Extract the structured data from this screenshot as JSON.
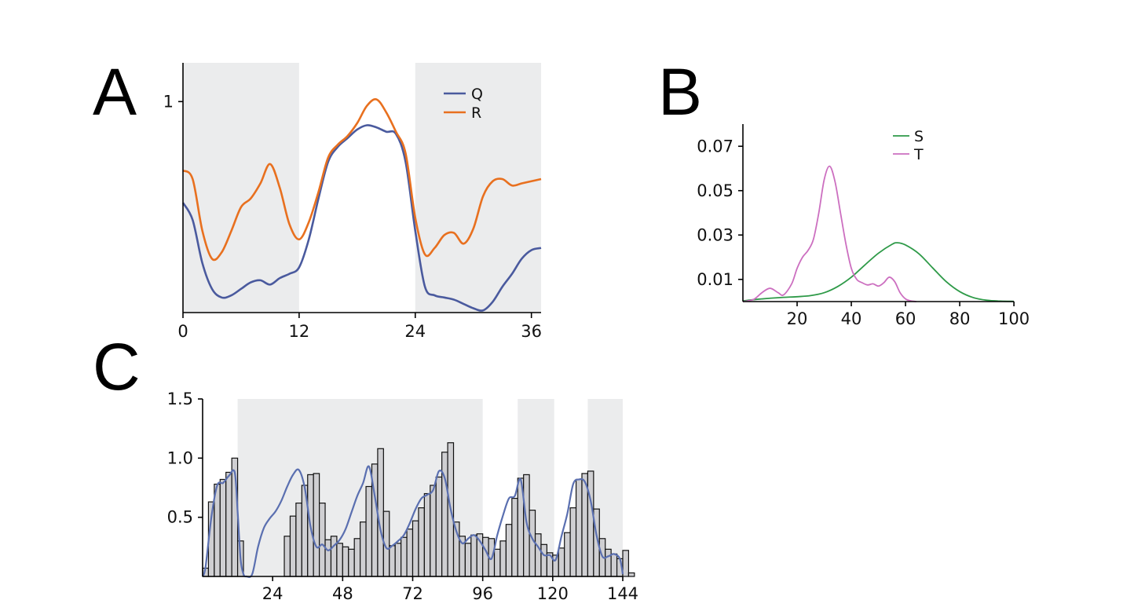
{
  "panels": {
    "a": {
      "letter": "A"
    },
    "b": {
      "letter": "B"
    },
    "c": {
      "letter": "C"
    }
  },
  "colors": {
    "Q": "#4a5a9e",
    "R": "#e8701f",
    "S": "#2e9a48",
    "T": "#cc6fc0",
    "C_line": "#5a6fb0",
    "C_bar": "#cfcfd2",
    "shade": "#ebeced"
  },
  "chart_data": [
    {
      "panel": "A",
      "type": "line",
      "xlim": [
        0,
        37
      ],
      "ylim": [
        0.02,
        1.18
      ],
      "x_ticks": [
        0,
        12,
        24,
        36
      ],
      "x_tick_labels": [
        "0",
        "12",
        "24",
        "36"
      ],
      "y_ticks": [
        1
      ],
      "y_tick_labels": [
        "1"
      ],
      "shaded_ranges": [
        [
          0,
          12
        ],
        [
          24,
          37
        ]
      ],
      "legend": {
        "position": "top-right"
      },
      "series": [
        {
          "name": "Q",
          "x": [
            0,
            1,
            2,
            3,
            4,
            5,
            6,
            7,
            8,
            9,
            10,
            11,
            12,
            13,
            14,
            15,
            16,
            17,
            18,
            19,
            20,
            21,
            22,
            23,
            24,
            25,
            26,
            27,
            28,
            29,
            30,
            31,
            32,
            33,
            34,
            35,
            36,
            37
          ],
          "y": [
            0.53,
            0.45,
            0.25,
            0.13,
            0.09,
            0.1,
            0.13,
            0.16,
            0.17,
            0.15,
            0.18,
            0.2,
            0.23,
            0.36,
            0.55,
            0.72,
            0.79,
            0.83,
            0.87,
            0.89,
            0.88,
            0.86,
            0.85,
            0.72,
            0.4,
            0.14,
            0.1,
            0.09,
            0.08,
            0.06,
            0.04,
            0.03,
            0.07,
            0.14,
            0.2,
            0.27,
            0.31,
            0.32
          ]
        },
        {
          "name": "R",
          "x": [
            0,
            1,
            2,
            3,
            4,
            5,
            6,
            7,
            8,
            9,
            10,
            11,
            12,
            13,
            14,
            15,
            16,
            17,
            18,
            19,
            20,
            21,
            22,
            23,
            24,
            25,
            26,
            27,
            28,
            29,
            30,
            31,
            32,
            33,
            34,
            35,
            36,
            37
          ],
          "y": [
            0.68,
            0.64,
            0.4,
            0.27,
            0.3,
            0.4,
            0.51,
            0.55,
            0.62,
            0.71,
            0.6,
            0.43,
            0.36,
            0.44,
            0.58,
            0.74,
            0.8,
            0.84,
            0.9,
            0.98,
            1.01,
            0.95,
            0.86,
            0.76,
            0.46,
            0.29,
            0.32,
            0.38,
            0.39,
            0.34,
            0.41,
            0.56,
            0.63,
            0.64,
            0.61,
            0.62,
            0.63,
            0.64
          ]
        }
      ]
    },
    {
      "panel": "B",
      "type": "line",
      "xlim": [
        0,
        102
      ],
      "ylim": [
        0,
        0.08
      ],
      "x_ticks": [
        20,
        40,
        60,
        80,
        100
      ],
      "x_tick_labels": [
        "20",
        "40",
        "60",
        "80",
        "100"
      ],
      "y_ticks": [
        0.01,
        0.03,
        0.05,
        0.07
      ],
      "y_tick_labels": [
        "0.01",
        "0.03",
        "0.05",
        "0.07"
      ],
      "legend": {
        "position": "top-center"
      },
      "series": [
        {
          "name": "S",
          "x": [
            0,
            5,
            10,
            15,
            20,
            25,
            30,
            35,
            40,
            45,
            50,
            55,
            57,
            60,
            65,
            70,
            75,
            80,
            85,
            90,
            95,
            100
          ],
          "y": [
            0.0003,
            0.001,
            0.0015,
            0.0019,
            0.0022,
            0.0027,
            0.004,
            0.0068,
            0.011,
            0.0165,
            0.0218,
            0.0258,
            0.0265,
            0.0255,
            0.0215,
            0.0152,
            0.009,
            0.0045,
            0.0018,
            0.0006,
            0.0002,
            0.0001
          ],
          "color_key": "S"
        },
        {
          "name": "T",
          "x": [
            0,
            4,
            7,
            10,
            13,
            15,
            18,
            20,
            22,
            24,
            26,
            28,
            30,
            32,
            34,
            36,
            38,
            40,
            42,
            44,
            46,
            48,
            50,
            52,
            54,
            56,
            58,
            60,
            62,
            64
          ],
          "y": [
            0.0,
            0.001,
            0.004,
            0.006,
            0.004,
            0.003,
            0.008,
            0.015,
            0.02,
            0.023,
            0.028,
            0.04,
            0.055,
            0.061,
            0.054,
            0.04,
            0.026,
            0.015,
            0.01,
            0.0085,
            0.0075,
            0.008,
            0.007,
            0.0085,
            0.011,
            0.009,
            0.004,
            0.0012,
            0.0003,
            0.0
          ],
          "color_key": "T"
        }
      ]
    },
    {
      "panel": "C",
      "type": "bar",
      "xlim": [
        0,
        144
      ],
      "ylim": [
        0,
        1.5
      ],
      "x_ticks": [
        24,
        48,
        72,
        96,
        120,
        144
      ],
      "x_tick_labels": [
        "24",
        "48",
        "72",
        "96",
        "120",
        "144"
      ],
      "y_ticks": [
        0.5,
        1.0,
        1.5
      ],
      "y_tick_labels": [
        "0.5",
        "1.0",
        "1.5"
      ],
      "shaded_ranges": [
        [
          0,
          12
        ],
        [
          12,
          96
        ],
        [
          108,
          120.5
        ],
        [
          132,
          144
        ]
      ],
      "bin_width": 2,
      "bar_values": [
        0.07,
        0.63,
        0.78,
        0.82,
        0.88,
        1.0,
        0.3,
        0.0,
        0.0,
        0.0,
        0.0,
        0.0,
        0.0,
        0.0,
        0.34,
        0.51,
        0.62,
        0.77,
        0.86,
        0.87,
        0.62,
        0.31,
        0.34,
        0.28,
        0.25,
        0.23,
        0.32,
        0.46,
        0.76,
        0.95,
        1.08,
        0.55,
        0.26,
        0.28,
        0.33,
        0.4,
        0.47,
        0.58,
        0.7,
        0.77,
        0.84,
        1.05,
        1.13,
        0.46,
        0.34,
        0.28,
        0.35,
        0.36,
        0.33,
        0.32,
        0.23,
        0.3,
        0.44,
        0.66,
        0.83,
        0.86,
        0.56,
        0.36,
        0.27,
        0.2,
        0.18,
        0.24,
        0.37,
        0.58,
        0.82,
        0.87,
        0.89,
        0.57,
        0.32,
        0.23,
        0.19,
        0.15,
        0.22,
        0.03
      ],
      "smooth_line": {
        "x": [
          0,
          1,
          3,
          5,
          7,
          9,
          11,
          12,
          13,
          14,
          15,
          17,
          19,
          21,
          23,
          25,
          27,
          29,
          31,
          33,
          35,
          37,
          39,
          41,
          43,
          45,
          47,
          49,
          51,
          53,
          55,
          57,
          59,
          61,
          63,
          65,
          67,
          69,
          71,
          73,
          75,
          77,
          79,
          81,
          83,
          85,
          87,
          89,
          91,
          93,
          95,
          97,
          99,
          101,
          103,
          105,
          107,
          109,
          111,
          113,
          115,
          117,
          119,
          121,
          123,
          125,
          127,
          129,
          131,
          133,
          135,
          137,
          139,
          141,
          143,
          144
        ],
        "y": [
          0.0,
          0.08,
          0.5,
          0.77,
          0.79,
          0.85,
          0.88,
          0.55,
          0.15,
          0.02,
          0.0,
          0.02,
          0.25,
          0.41,
          0.49,
          0.55,
          0.64,
          0.76,
          0.86,
          0.9,
          0.75,
          0.42,
          0.25,
          0.27,
          0.22,
          0.26,
          0.31,
          0.4,
          0.54,
          0.68,
          0.79,
          0.93,
          0.68,
          0.39,
          0.24,
          0.26,
          0.3,
          0.35,
          0.45,
          0.57,
          0.66,
          0.69,
          0.73,
          0.89,
          0.83,
          0.57,
          0.38,
          0.28,
          0.32,
          0.35,
          0.3,
          0.22,
          0.15,
          0.35,
          0.52,
          0.66,
          0.68,
          0.82,
          0.46,
          0.32,
          0.25,
          0.18,
          0.18,
          0.14,
          0.34,
          0.53,
          0.78,
          0.82,
          0.8,
          0.64,
          0.35,
          0.17,
          0.17,
          0.19,
          0.15,
          0.02
        ]
      }
    }
  ]
}
